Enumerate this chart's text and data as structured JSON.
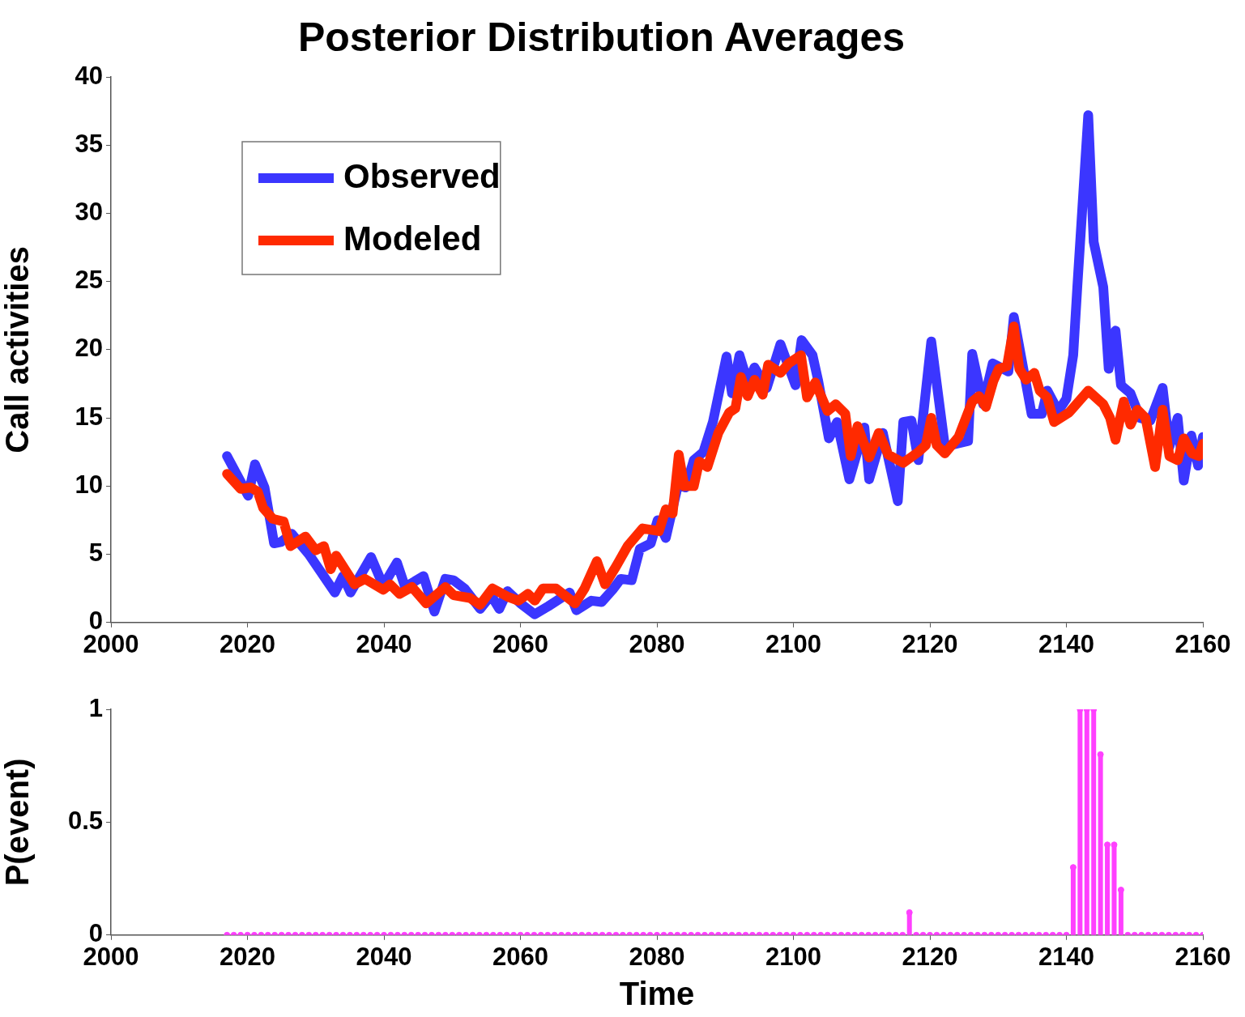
{
  "chart_data": [
    {
      "type": "line",
      "title": "Posterior Distribution Averages",
      "ylabel": "Call activities",
      "legend": "top left",
      "xlim": [
        2000,
        2160
      ],
      "xticks": [
        2000,
        2020,
        2040,
        2060,
        2080,
        2100,
        2120,
        2140,
        2160
      ],
      "ylim": [
        0,
        40
      ],
      "yticks": [
        0,
        5,
        10,
        15,
        20,
        25,
        30,
        35,
        40
      ],
      "series": [
        {
          "name": "Observed",
          "color": "#3b36ff",
          "x": [
            2017,
            2020.1,
            2021.1,
            2022.5,
            2023.9,
            2024.9,
            2026.5,
            2029,
            2032.8,
            2034,
            2035.1,
            2038.1,
            2039.9,
            2041.9,
            2043.1,
            2045.8,
            2047.4,
            2049,
            2050.2,
            2051.8,
            2054.1,
            2055.7,
            2056.9,
            2058.1,
            2060,
            2062.1,
            2064.1,
            2067.2,
            2068.2,
            2070.4,
            2071.9,
            2073.5,
            2074.7,
            2076.3,
            2077.5,
            2079.1,
            2080.1,
            2081.3,
            2083.1,
            2084.2,
            2085.4,
            2086.8,
            2088.2,
            2090.2,
            2091,
            2092.1,
            2093.3,
            2094.3,
            2096.1,
            2098.1,
            2100.3,
            2101.2,
            2102.8,
            2103.6,
            2105.2,
            2106.4,
            2108.2,
            2110.4,
            2111.1,
            2113.1,
            2115.3,
            2116.1,
            2117.3,
            2118.3,
            2120.2,
            2122.2,
            2125.6,
            2126.2,
            2127.8,
            2129.2,
            2131.5,
            2132.3,
            2134.9,
            2136.4,
            2137.2,
            2138.8,
            2140,
            2141,
            2141.6,
            2143.2,
            2144,
            2145.4,
            2146.2,
            2147.2,
            2148,
            2149.4,
            2150.8,
            2152.3,
            2154.1,
            2155.1,
            2156.3,
            2157.2,
            2158.3,
            2159.3,
            2160
          ],
          "values": [
            12.2,
            9.3,
            11.6,
            9.9,
            5.8,
            5.9,
            6.5,
            5,
            2.2,
            3.4,
            2.2,
            4.8,
            2.7,
            4.4,
            2.6,
            3.4,
            0.8,
            3.2,
            3.1,
            2.5,
            1,
            2,
            1,
            2.3,
            1.4,
            0.6,
            1.2,
            2.2,
            0.9,
            1.6,
            1.5,
            2.4,
            3.2,
            3.1,
            5.4,
            5.8,
            7.5,
            6.2,
            10.1,
            9.9,
            11.9,
            12.5,
            14.7,
            19.5,
            16.8,
            19.6,
            17.6,
            18.7,
            17.2,
            20.4,
            17.4,
            20.7,
            19.6,
            17.8,
            13.5,
            14.7,
            10.5,
            14.3,
            10.5,
            13.9,
            8.9,
            14.7,
            14.8,
            11.9,
            20.6,
            12.9,
            13.3,
            19.7,
            16,
            19,
            18.4,
            22.4,
            15.3,
            15.3,
            17,
            15.5,
            16.4,
            19.6,
            24.6,
            37.2,
            27.9,
            24.6,
            18.6,
            21.4,
            17.4,
            16.8,
            15,
            14.8,
            17.2,
            12.9,
            15,
            10.4,
            13.7,
            11.5,
            13.6
          ]
        },
        {
          "name": "Modeled",
          "color": "#ff2a00",
          "x": [
            2017,
            2019,
            2020.5,
            2021.5,
            2022.3,
            2023.7,
            2025.3,
            2026.3,
            2028.5,
            2030,
            2031.2,
            2032.2,
            2033,
            2035.7,
            2037.2,
            2039.9,
            2040.9,
            2042.3,
            2044.1,
            2046.2,
            2049,
            2050.2,
            2052.6,
            2054.1,
            2055.9,
            2058.1,
            2059.7,
            2061.1,
            2062.1,
            2063.3,
            2065.2,
            2068,
            2069.4,
            2071.2,
            2072.4,
            2074,
            2075.7,
            2077.9,
            2080.3,
            2081.3,
            2082.3,
            2083.2,
            2084,
            2085.4,
            2086.2,
            2087.4,
            2089,
            2090.6,
            2091.5,
            2092.3,
            2093.3,
            2094.3,
            2095.5,
            2096.3,
            2098.1,
            2099.3,
            2101.1,
            2102,
            2103.2,
            2105,
            2106.2,
            2107.6,
            2108.4,
            2109.4,
            2111.1,
            2112.5,
            2113.9,
            2116.1,
            2118.3,
            2119.4,
            2120.2,
            2121,
            2122.2,
            2124.2,
            2126.2,
            2127.2,
            2128.2,
            2129.3,
            2130.1,
            2131.3,
            2132.3,
            2133.1,
            2134.1,
            2135.3,
            2136.1,
            2137.2,
            2138.2,
            2140.4,
            2143.2,
            2145.4,
            2146.4,
            2147.2,
            2148.4,
            2149.4,
            2150.4,
            2151.6,
            2153,
            2154.1,
            2155.1,
            2156.3,
            2157.2,
            2158.4,
            2159.4,
            2160
          ],
          "values": [
            10.9,
            9.8,
            9.9,
            9.6,
            8.4,
            7.6,
            7.4,
            5.6,
            6.3,
            5.3,
            5.6,
            3.9,
            4.9,
            2.8,
            3.2,
            2.4,
            2.8,
            2.1,
            2.6,
            1.4,
            2.6,
            2,
            1.8,
            1.3,
            2.5,
            1.9,
            1.6,
            2.1,
            1.6,
            2.5,
            2.5,
            1.4,
            2.5,
            4.5,
            2.8,
            4.1,
            5.6,
            6.9,
            6.7,
            8.3,
            8,
            12.3,
            10,
            10,
            11.8,
            11.4,
            13.9,
            15.4,
            15.7,
            18,
            16.6,
            17.8,
            16.7,
            18.9,
            18.3,
            19,
            19.6,
            16.5,
            17.6,
            15.5,
            16,
            15.3,
            12.2,
            14.4,
            12.1,
            13.9,
            12.3,
            11.7,
            12.5,
            13,
            15,
            13,
            12.4,
            13.6,
            16.2,
            16.6,
            15.8,
            17.7,
            18.6,
            18.8,
            21.7,
            18.6,
            17.8,
            18.3,
            17,
            16.5,
            14.7,
            15.4,
            17,
            16,
            15,
            13.4,
            16.2,
            14.5,
            15.6,
            15,
            11.4,
            15.6,
            12.2,
            11.9,
            13.5,
            12.4,
            12.2,
            13.1
          ]
        }
      ]
    },
    {
      "type": "lollipop",
      "xlabel": "Time",
      "ylabel": "P(event)",
      "color": "#ff40ff",
      "marker": "circle",
      "xlim": [
        2000,
        2160
      ],
      "xticks": [
        2000,
        2020,
        2040,
        2060,
        2080,
        2100,
        2120,
        2140,
        2160
      ],
      "ylim": [
        0,
        1
      ],
      "yticks": [
        0,
        0.5,
        1
      ],
      "x": [
        2017,
        2018,
        2019,
        2020,
        2021,
        2022,
        2023,
        2024,
        2025,
        2026,
        2027,
        2028,
        2029,
        2030,
        2031,
        2032,
        2033,
        2034,
        2035,
        2036,
        2037,
        2038,
        2039,
        2040,
        2041,
        2042,
        2043,
        2044,
        2045,
        2046,
        2047,
        2048,
        2049,
        2050,
        2051,
        2052,
        2053,
        2054,
        2055,
        2056,
        2057,
        2058,
        2059,
        2060,
        2061,
        2062,
        2063,
        2064,
        2065,
        2066,
        2067,
        2068,
        2069,
        2070,
        2071,
        2072,
        2073,
        2074,
        2075,
        2076,
        2077,
        2078,
        2079,
        2080,
        2081,
        2082,
        2083,
        2084,
        2085,
        2086,
        2087,
        2088,
        2089,
        2090,
        2091,
        2092,
        2093,
        2094,
        2095,
        2096,
        2097,
        2098,
        2099,
        2100,
        2101,
        2102,
        2103,
        2104,
        2105,
        2106,
        2107,
        2108,
        2109,
        2110,
        2111,
        2112,
        2113,
        2114,
        2115,
        2116,
        2117,
        2118,
        2119,
        2120,
        2121,
        2122,
        2123,
        2124,
        2125,
        2126,
        2127,
        2128,
        2129,
        2130,
        2131,
        2132,
        2133,
        2134,
        2135,
        2136,
        2137,
        2138,
        2139,
        2140,
        2141,
        2142,
        2143,
        2144,
        2145,
        2146,
        2147,
        2148,
        2149,
        2150,
        2151,
        2152,
        2153,
        2154,
        2155,
        2156,
        2157,
        2158,
        2159,
        2160
      ],
      "values": [
        0,
        0,
        0,
        0,
        0,
        0,
        0,
        0,
        0,
        0,
        0,
        0,
        0,
        0,
        0,
        0,
        0,
        0,
        0,
        0,
        0,
        0,
        0,
        0,
        0,
        0,
        0,
        0,
        0,
        0,
        0,
        0,
        0,
        0,
        0,
        0,
        0,
        0,
        0,
        0,
        0,
        0,
        0,
        0,
        0,
        0,
        0,
        0,
        0,
        0,
        0,
        0,
        0,
        0,
        0,
        0,
        0,
        0,
        0,
        0,
        0,
        0,
        0,
        0,
        0,
        0,
        0,
        0,
        0,
        0,
        0,
        0,
        0,
        0,
        0,
        0,
        0,
        0,
        0,
        0,
        0,
        0,
        0,
        0,
        0,
        0,
        0,
        0,
        0,
        0,
        0,
        0,
        0,
        0,
        0,
        0,
        0,
        0,
        0,
        0,
        0.1,
        0,
        0,
        0,
        0,
        0,
        0,
        0,
        0,
        0,
        0,
        0,
        0,
        0,
        0,
        0,
        0,
        0,
        0,
        0,
        0,
        0,
        0,
        0,
        0.3,
        1,
        1,
        1,
        0.8,
        0.4,
        0.4,
        0.2,
        0,
        0,
        0,
        0,
        0,
        0,
        0,
        0,
        0,
        0,
        0,
        0
      ]
    }
  ]
}
